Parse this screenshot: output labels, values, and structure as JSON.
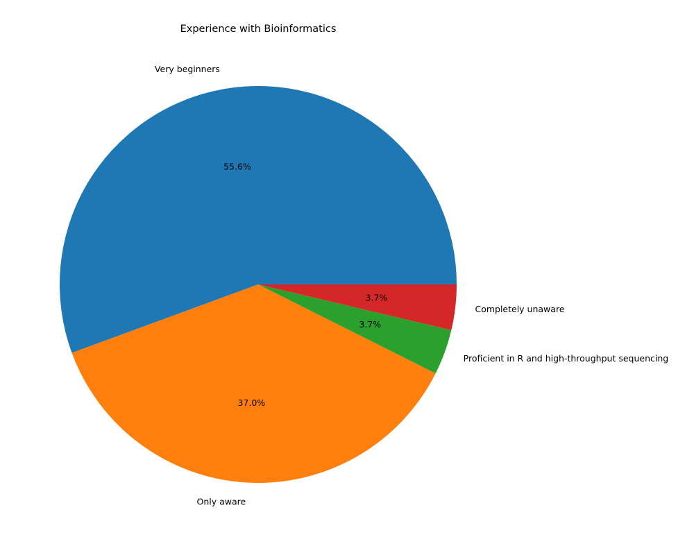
{
  "chart_data": {
    "type": "pie",
    "title": "Experience with Bioinformatics",
    "start_angle_deg": 0,
    "direction": "counterclockwise",
    "slices": [
      {
        "label": "Very beginners",
        "value": 55.6,
        "pct_label": "55.6%",
        "color": "#1f77b4"
      },
      {
        "label": "Only aware",
        "value": 37.0,
        "pct_label": "37.0%",
        "color": "#ff7f0e"
      },
      {
        "label": "Proficient in R and high-throughput sequencing",
        "value": 3.7,
        "pct_label": "3.7%",
        "color": "#2ca02c"
      },
      {
        "label": "Completely unaware",
        "value": 3.7,
        "pct_label": "3.7%",
        "color": "#d62728"
      }
    ]
  }
}
